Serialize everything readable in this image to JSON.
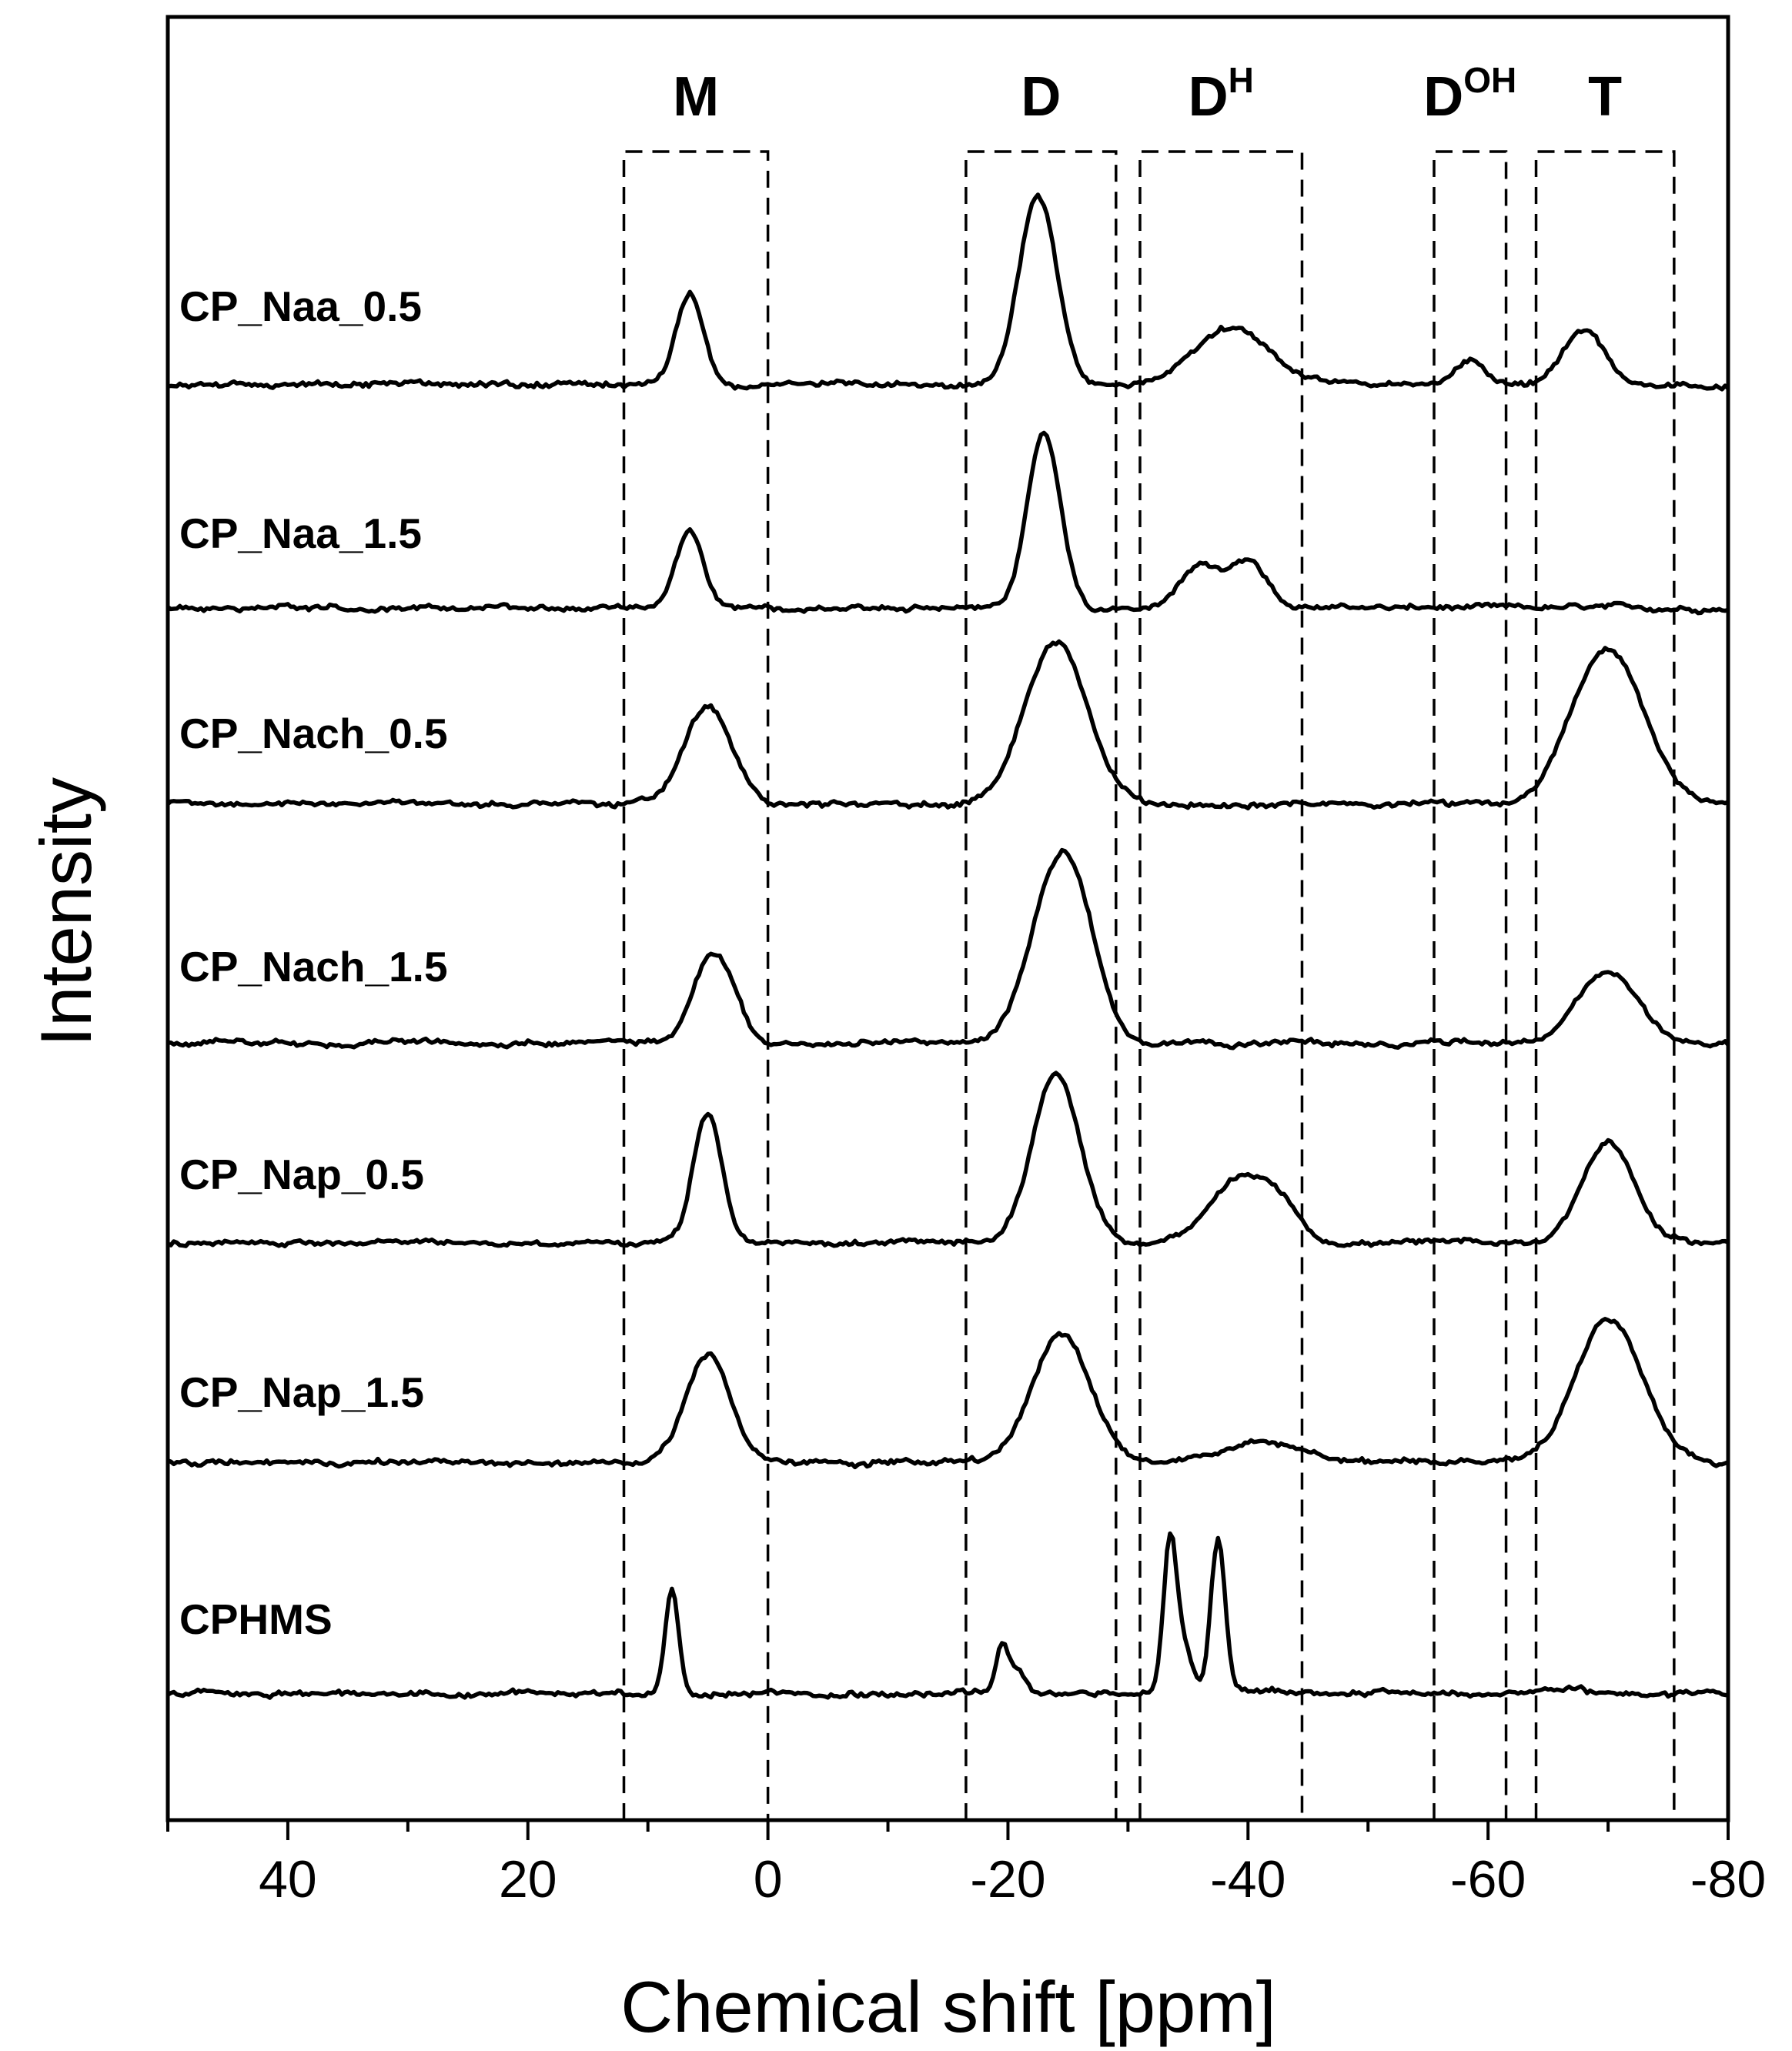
{
  "chart_data": {
    "type": "line",
    "title": "",
    "xlabel": "Chemical shift [ppm]",
    "ylabel": "Intensity",
    "xlim": [
      50,
      -80
    ],
    "x_reversed": true,
    "x_ticks": [
      40,
      20,
      0,
      -20,
      -40,
      -60,
      -80
    ],
    "x_tick_labels": [
      "40",
      "20",
      "0",
      "-20",
      "-40",
      "-60",
      "-80"
    ],
    "grid": false,
    "legend": "none; each trace labelled at its left end",
    "regions": [
      {
        "base": "M",
        "sup": "",
        "from": 12,
        "to": 0
      },
      {
        "base": "D",
        "sup": "",
        "from": -16.5,
        "to": -29
      },
      {
        "base": "D",
        "sup": "H",
        "from": -31,
        "to": -44.5
      },
      {
        "base": "D",
        "sup": "OH",
        "from": -55.5,
        "to": -61.5
      },
      {
        "base": "T",
        "sup": "",
        "from": -64,
        "to": -75.5
      }
    ],
    "series": [
      {
        "name": "CP_Naa_0.5",
        "peaks": [
          [
            6.5,
            0.7,
            1.1
          ],
          [
            -22.5,
            1.45,
            1.6
          ],
          [
            -38.5,
            0.45,
            3.2
          ],
          [
            -58.5,
            0.2,
            1.3
          ],
          [
            -68,
            0.42,
            1.7
          ]
        ]
      },
      {
        "name": "CP_Naa_1.5",
        "peaks": [
          [
            6.5,
            0.6,
            1.1
          ],
          [
            -23,
            1.35,
            1.4
          ],
          [
            -36,
            0.33,
            1.6
          ],
          [
            -40,
            0.35,
            1.5
          ]
        ]
      },
      {
        "name": "CP_Nach_0.5",
        "peaks": [
          [
            5,
            0.75,
            2.0
          ],
          [
            -24,
            1.25,
            2.6
          ],
          [
            -70,
            1.22,
            3.0
          ]
        ]
      },
      {
        "name": "CP_Nach_1.5",
        "peaks": [
          [
            5,
            0.6,
            1.4
          ],
          [
            3,
            0.25,
            1.2
          ],
          [
            -23,
            0.7,
            2.0
          ],
          [
            -25.5,
            1.05,
            2.0
          ],
          [
            -70,
            0.55,
            2.5
          ]
        ]
      },
      {
        "name": "CP_Nap_0.5",
        "peaks": [
          [
            5,
            1.0,
            1.2
          ],
          [
            -24,
            1.3,
            2.0
          ],
          [
            -39.5,
            0.5,
            2.5
          ],
          [
            -43,
            0.18,
            1.5
          ],
          [
            -70,
            0.78,
            2.2
          ]
        ]
      },
      {
        "name": "CP_Nap_1.5",
        "peaks": [
          [
            5,
            0.85,
            1.8
          ],
          [
            -24.5,
            1.0,
            2.4
          ],
          [
            -41,
            0.15,
            3.0
          ],
          [
            -70,
            1.12,
            2.8
          ]
        ]
      },
      {
        "name": "CPHMS",
        "peaks": [
          [
            8,
            0.82,
            0.55
          ],
          [
            -19.5,
            0.37,
            0.5
          ],
          [
            -20.8,
            0.18,
            0.6
          ],
          [
            -33.5,
            1.17,
            0.55
          ],
          [
            -34.7,
            0.35,
            0.7
          ],
          [
            -37.5,
            1.2,
            0.6
          ],
          [
            -66,
            0.05,
            1.5
          ]
        ]
      }
    ]
  }
}
